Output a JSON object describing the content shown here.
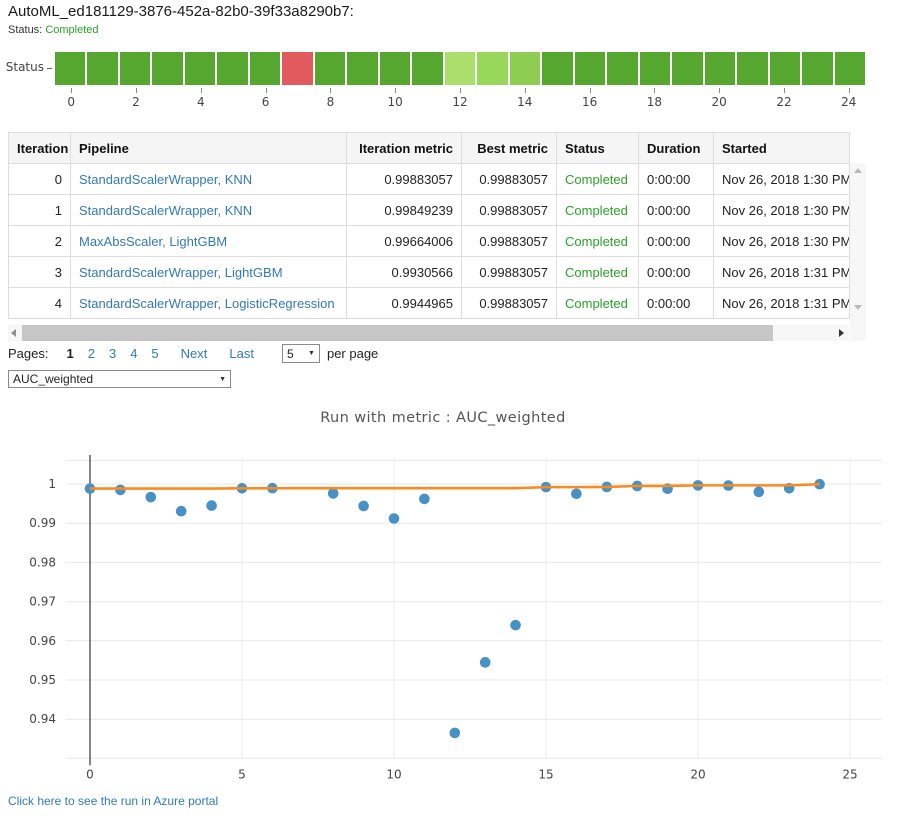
{
  "header": {
    "title": "AutoML_ed181129-3876-452a-82b0-39f33a8290b7:",
    "status_label": "Status:",
    "status_value": "Completed"
  },
  "colors": {
    "green_dark": "#56a72f",
    "green_light_1": "#abdf6c",
    "green_light_2": "#97d75a",
    "green_light_3": "#8ccd52",
    "red": "#e35a5e",
    "status_green": "#28a428",
    "link_blue": "#337ab7",
    "dot_blue": "#4691c6",
    "line_orange": "#fb8b1e"
  },
  "status_strip": {
    "label": "Status",
    "cell_colors": [
      "#56a72f",
      "#56a72f",
      "#56a72f",
      "#56a72f",
      "#56a72f",
      "#56a72f",
      "#56a72f",
      "#e35a5e",
      "#56a72f",
      "#56a72f",
      "#56a72f",
      "#56a72f",
      "#abdf6c",
      "#97d75a",
      "#8ccd52",
      "#56a72f",
      "#56a72f",
      "#56a72f",
      "#56a72f",
      "#56a72f",
      "#56a72f",
      "#56a72f",
      "#56a72f",
      "#56a72f",
      "#56a72f"
    ],
    "ticks": [
      "0",
      "2",
      "4",
      "6",
      "8",
      "10",
      "12",
      "14",
      "16",
      "18",
      "20",
      "22",
      "24"
    ]
  },
  "table": {
    "columns": [
      {
        "label": "Iteration",
        "align": "left"
      },
      {
        "label": "Pipeline",
        "align": "left"
      },
      {
        "label": "Iteration metric",
        "align": "right"
      },
      {
        "label": "Best metric",
        "align": "right"
      },
      {
        "label": "Status",
        "align": "left"
      },
      {
        "label": "Duration",
        "align": "left"
      },
      {
        "label": "Started",
        "align": "left"
      }
    ],
    "rows": [
      {
        "iteration": "0",
        "pipeline": "StandardScalerWrapper, KNN",
        "iteration_metric": "0.99883057",
        "best_metric": "0.99883057",
        "status": "Completed",
        "duration": "0:00:00",
        "started": "Nov 26, 2018 1:30 PM"
      },
      {
        "iteration": "1",
        "pipeline": "StandardScalerWrapper, KNN",
        "iteration_metric": "0.99849239",
        "best_metric": "0.99883057",
        "status": "Completed",
        "duration": "0:00:00",
        "started": "Nov 26, 2018 1:30 PM"
      },
      {
        "iteration": "2",
        "pipeline": "MaxAbsScaler, LightGBM",
        "iteration_metric": "0.99664006",
        "best_metric": "0.99883057",
        "status": "Completed",
        "duration": "0:00:00",
        "started": "Nov 26, 2018 1:30 PM"
      },
      {
        "iteration": "3",
        "pipeline": "StandardScalerWrapper, LightGBM",
        "iteration_metric": "0.9930566",
        "best_metric": "0.99883057",
        "status": "Completed",
        "duration": "0:00:00",
        "started": "Nov 26, 2018 1:31 PM"
      },
      {
        "iteration": "4",
        "pipeline": "StandardScalerWrapper, LogisticRegression",
        "iteration_metric": "0.9944965",
        "best_metric": "0.99883057",
        "status": "Completed",
        "duration": "0:00:00",
        "started": "Nov 26, 2018 1:31 PM"
      }
    ]
  },
  "pagination": {
    "label": "Pages:",
    "current": "1",
    "pages": [
      "2",
      "3",
      "4",
      "5"
    ],
    "next_label": "Next",
    "last_label": "Last",
    "per_page_value": "5",
    "per_page_label": "per page"
  },
  "metric_select": {
    "value": "AUC_weighted"
  },
  "chart_data": {
    "type": "scatter",
    "title": "Run with metric : AUC_weighted",
    "xlabel": "",
    "ylabel": "",
    "xticks": [
      "0",
      "5",
      "10",
      "15",
      "20",
      "25"
    ],
    "xtick_values": [
      0,
      5,
      10,
      15,
      20,
      25
    ],
    "yticks": [
      "1",
      "0.99",
      "0.98",
      "0.97",
      "0.96",
      "0.95",
      "0.94"
    ],
    "ytick_values": [
      1,
      0.99,
      0.98,
      0.97,
      0.96,
      0.95,
      0.94
    ],
    "xlim": [
      -0.9,
      26.2
    ],
    "ylim": [
      0.93,
      1.006
    ],
    "grid": true,
    "legend": "none",
    "series": [
      {
        "name": "iteration metric",
        "type": "scatter",
        "x": [
          0,
          1,
          2,
          3,
          4,
          5,
          6,
          8,
          9,
          10,
          11,
          12,
          13,
          14,
          15,
          16,
          17,
          18,
          19,
          20,
          21,
          22,
          23,
          24
        ],
        "y": [
          0.99883057,
          0.99849239,
          0.99664006,
          0.9930566,
          0.9944965,
          0.9989,
          0.99892,
          0.9976,
          0.9944,
          0.9912,
          0.9962,
          0.9365,
          0.9545,
          0.964,
          0.9992,
          0.9975,
          0.99925,
          0.9995,
          0.9988,
          0.99965,
          0.9996,
          0.998,
          0.9989,
          0.99995
        ]
      },
      {
        "name": "best metric",
        "type": "line",
        "x": [
          0,
          1,
          2,
          3,
          4,
          5,
          6,
          7,
          8,
          9,
          10,
          11,
          12,
          13,
          14,
          15,
          16,
          17,
          18,
          19,
          20,
          21,
          22,
          23,
          24
        ],
        "y": [
          0.99883057,
          0.99883057,
          0.99883057,
          0.99883057,
          0.99883057,
          0.9989,
          0.99892,
          0.99892,
          0.99892,
          0.99892,
          0.99892,
          0.99892,
          0.99892,
          0.99892,
          0.99892,
          0.9992,
          0.9992,
          0.99925,
          0.9995,
          0.9995,
          0.99965,
          0.99965,
          0.99965,
          0.99965,
          0.99995
        ]
      }
    ]
  },
  "footer": {
    "link_label": "Click here to see the run in Azure portal"
  }
}
